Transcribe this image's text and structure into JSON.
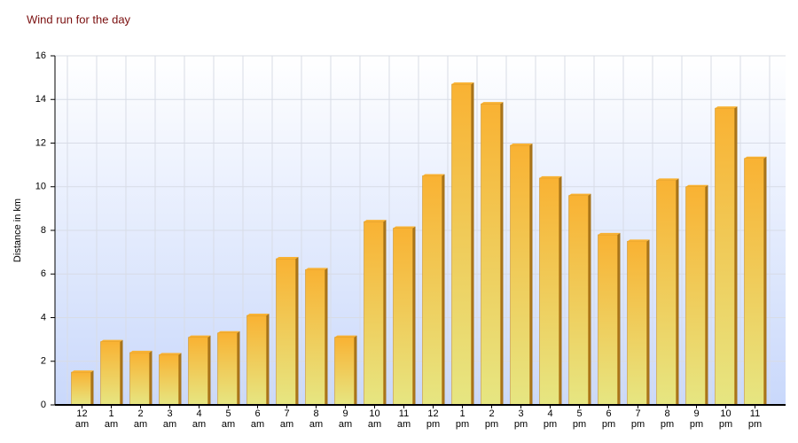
{
  "chart_data": {
    "type": "bar",
    "title": "Wind run for the day",
    "y_label": "Distance in km",
    "categories": [
      "12 am",
      "1 am",
      "2 am",
      "3 am",
      "4 am",
      "5 am",
      "6 am",
      "7 am",
      "8 am",
      "9 am",
      "10 am",
      "11 am",
      "12 pm",
      "1 pm",
      "2 pm",
      "3 pm",
      "4 pm",
      "5 pm",
      "6 pm",
      "7 pm",
      "8 pm",
      "9 pm",
      "10 pm",
      "11 pm"
    ],
    "values": [
      1.5,
      2.9,
      2.4,
      2.3,
      3.1,
      3.3,
      4.1,
      6.7,
      6.2,
      3.1,
      8.4,
      8.1,
      10.5,
      14.7,
      13.8,
      11.9,
      10.4,
      9.6,
      7.8,
      7.5,
      10.3,
      10.0,
      13.6,
      11.3
    ],
    "color": "#f9b233",
    "ylim": [
      0,
      16
    ],
    "yticks": [
      0,
      2,
      4,
      6,
      8,
      10,
      12,
      14,
      16
    ],
    "grid": true
  }
}
